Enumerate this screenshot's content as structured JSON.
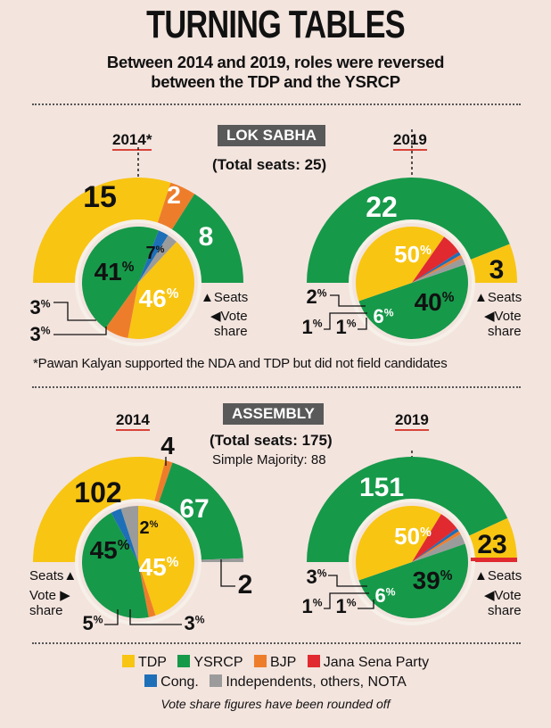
{
  "header": {
    "title": "TURNING TABLES",
    "subtitle_line1": "Between 2014 and 2019, roles were reversed",
    "subtitle_line2": "between the TDP and the YSRCP"
  },
  "colors": {
    "TDP": "#f8c512",
    "YSRCP": "#17994a",
    "BJP": "#ee7d2b",
    "Jana Sena Party": "#e02a2f",
    "Cong.": "#1d6fb8",
    "Others": "#9b9b9b",
    "background": "#f3e4de",
    "badge": "#595959",
    "year_underline": "#d9443a"
  },
  "lok_sabha": {
    "badge": "LOK SABHA",
    "total": "(Total seats: 25)",
    "note": "*Pawan Kalyan supported the NDA and TDP but did not field candidates"
  },
  "assembly": {
    "badge": "ASSEMBLY",
    "total": "(Total seats: 175)",
    "majority": "Simple Majority: 88"
  },
  "labels": {
    "seats": "Seats",
    "vote": "Vote",
    "share": "share"
  },
  "legend": [
    {
      "key": "TDP",
      "label": "TDP"
    },
    {
      "key": "YSRCP",
      "label": "YSRCP"
    },
    {
      "key": "BJP",
      "label": "BJP"
    },
    {
      "key": "Jana Sena Party",
      "label": "Jana Sena Party"
    },
    {
      "key": "Cong.",
      "label": "Cong."
    },
    {
      "key": "Others",
      "label": "Independents, others, NOTA"
    }
  ],
  "footnote": "Vote share figures have been rounded off",
  "chart_data": [
    {
      "type": "pie",
      "title": "Lok Sabha 2014*",
      "year_label": "2014*",
      "seats": {
        "total": 25,
        "values": [
          {
            "party": "TDP",
            "value": 15
          },
          {
            "party": "BJP",
            "value": 2
          },
          {
            "party": "YSRCP",
            "value": 8
          }
        ]
      },
      "vote_share": [
        {
          "party": "TDP",
          "value": 41,
          "label": "41%"
        },
        {
          "party": "BJP",
          "value": 7,
          "label": "7%"
        },
        {
          "party": "YSRCP",
          "value": 46,
          "label": "46%"
        },
        {
          "party": "Cong.",
          "value": 3,
          "label": "3%"
        },
        {
          "party": "Others",
          "value": 3,
          "label": "3%"
        }
      ]
    },
    {
      "type": "pie",
      "title": "Lok Sabha 2019",
      "year_label": "2019",
      "seats": {
        "total": 25,
        "values": [
          {
            "party": "YSRCP",
            "value": 22
          },
          {
            "party": "TDP",
            "value": 3
          }
        ]
      },
      "vote_share": [
        {
          "party": "YSRCP",
          "value": 50,
          "label": "50%"
        },
        {
          "party": "TDP",
          "value": 40,
          "label": "40%"
        },
        {
          "party": "Jana Sena Party",
          "value": 6,
          "label": "6%"
        },
        {
          "party": "Cong.",
          "value": 1,
          "label": "1%"
        },
        {
          "party": "BJP",
          "value": 1,
          "label": "1%"
        },
        {
          "party": "Others",
          "value": 2,
          "label": "2%"
        }
      ]
    },
    {
      "type": "pie",
      "title": "Assembly 2014",
      "year_label": "2014",
      "seats": {
        "total": 175,
        "values": [
          {
            "party": "TDP",
            "value": 102
          },
          {
            "party": "BJP",
            "value": 4
          },
          {
            "party": "YSRCP",
            "value": 67
          },
          {
            "party": "Others",
            "value": 2
          }
        ]
      },
      "vote_share": [
        {
          "party": "TDP",
          "value": 45,
          "label": "45%"
        },
        {
          "party": "BJP",
          "value": 2,
          "label": "2%"
        },
        {
          "party": "YSRCP",
          "value": 45,
          "label": "45%"
        },
        {
          "party": "Cong.",
          "value": 3,
          "label": "3%"
        },
        {
          "party": "Others",
          "value": 5,
          "label": "5%"
        }
      ]
    },
    {
      "type": "pie",
      "title": "Assembly 2019",
      "year_label": "2019",
      "seats": {
        "total": 175,
        "values": [
          {
            "party": "YSRCP",
            "value": 151
          },
          {
            "party": "TDP",
            "value": 23
          },
          {
            "party": "Jana Sena Party",
            "value": 1
          }
        ]
      },
      "vote_share": [
        {
          "party": "YSRCP",
          "value": 50,
          "label": "50%"
        },
        {
          "party": "TDP",
          "value": 39,
          "label": "39%"
        },
        {
          "party": "Jana Sena Party",
          "value": 6,
          "label": "6%"
        },
        {
          "party": "Cong.",
          "value": 1,
          "label": "1%"
        },
        {
          "party": "BJP",
          "value": 1,
          "label": "1%"
        },
        {
          "party": "Others",
          "value": 3,
          "label": "3%"
        }
      ]
    }
  ]
}
